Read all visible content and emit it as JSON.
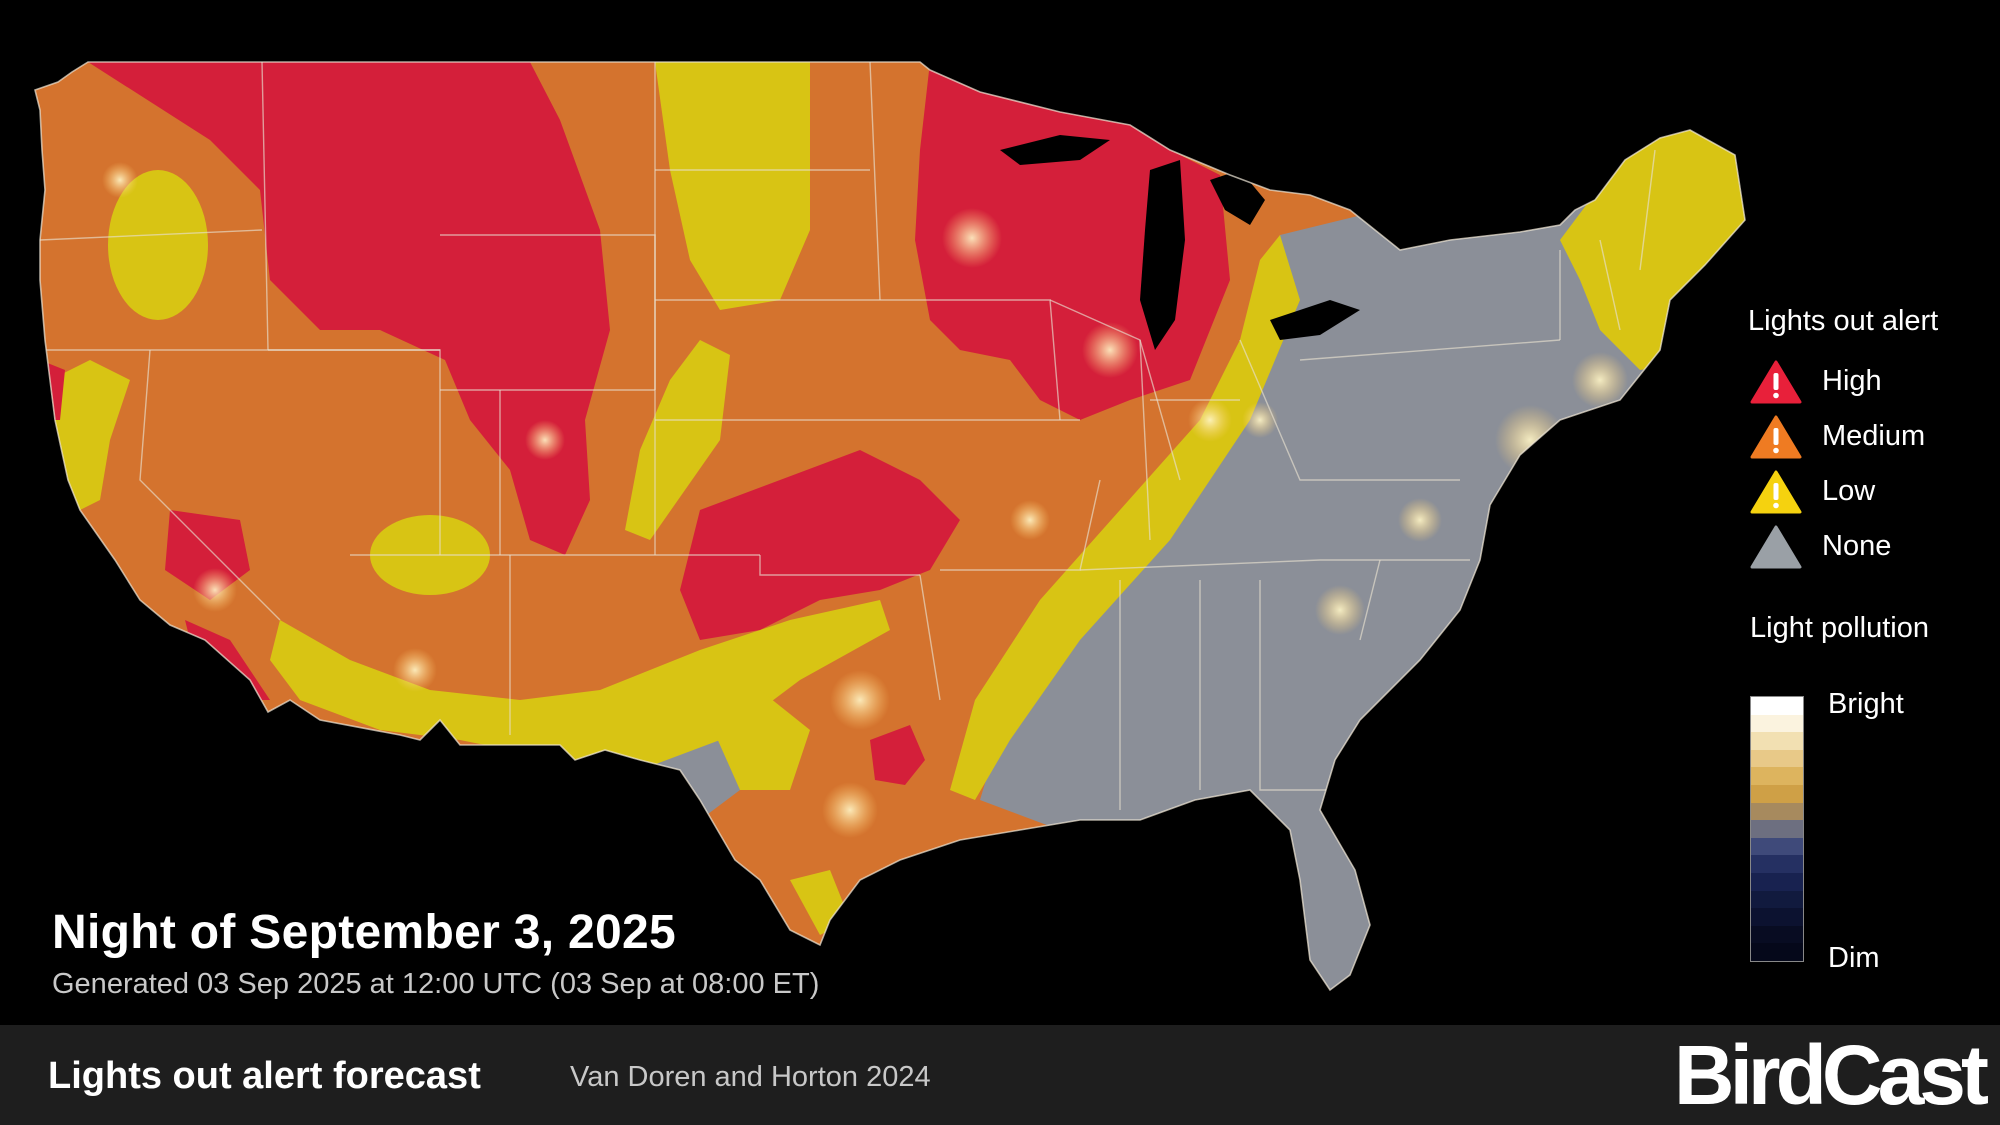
{
  "map": {
    "title": "Night of September 3, 2025",
    "generated": "Generated 03 Sep 2025 at 12:00 UTC (03 Sep at 08:00 ET)",
    "region": "Contiguous United States"
  },
  "legend": {
    "alert_title": "Lights out alert",
    "alerts": [
      {
        "label": "High",
        "color": "#e8203a",
        "icon": "warning-triangle-icon"
      },
      {
        "label": "Medium",
        "color": "#ef7b22",
        "icon": "warning-triangle-icon"
      },
      {
        "label": "Low",
        "color": "#f5d20f",
        "icon": "warning-triangle-icon"
      },
      {
        "label": "None",
        "color": "#9aa0a6",
        "icon": "triangle-icon"
      }
    ],
    "light_pollution_title": "Light pollution",
    "bright_label": "Bright",
    "dim_label": "Dim",
    "scale_colors": [
      "#ffffff",
      "#fbf3df",
      "#f2e0b2",
      "#e8c988",
      "#ddb45e",
      "#cfa046",
      "#a78a5e",
      "#6d6f80",
      "#3f4a7a",
      "#253062",
      "#182250",
      "#111a3e",
      "#0c1230",
      "#080c22",
      "#05081a"
    ]
  },
  "footer": {
    "title": "Lights out alert forecast",
    "credit": "Van Doren and Horton 2024",
    "logo": "BirdCast"
  }
}
